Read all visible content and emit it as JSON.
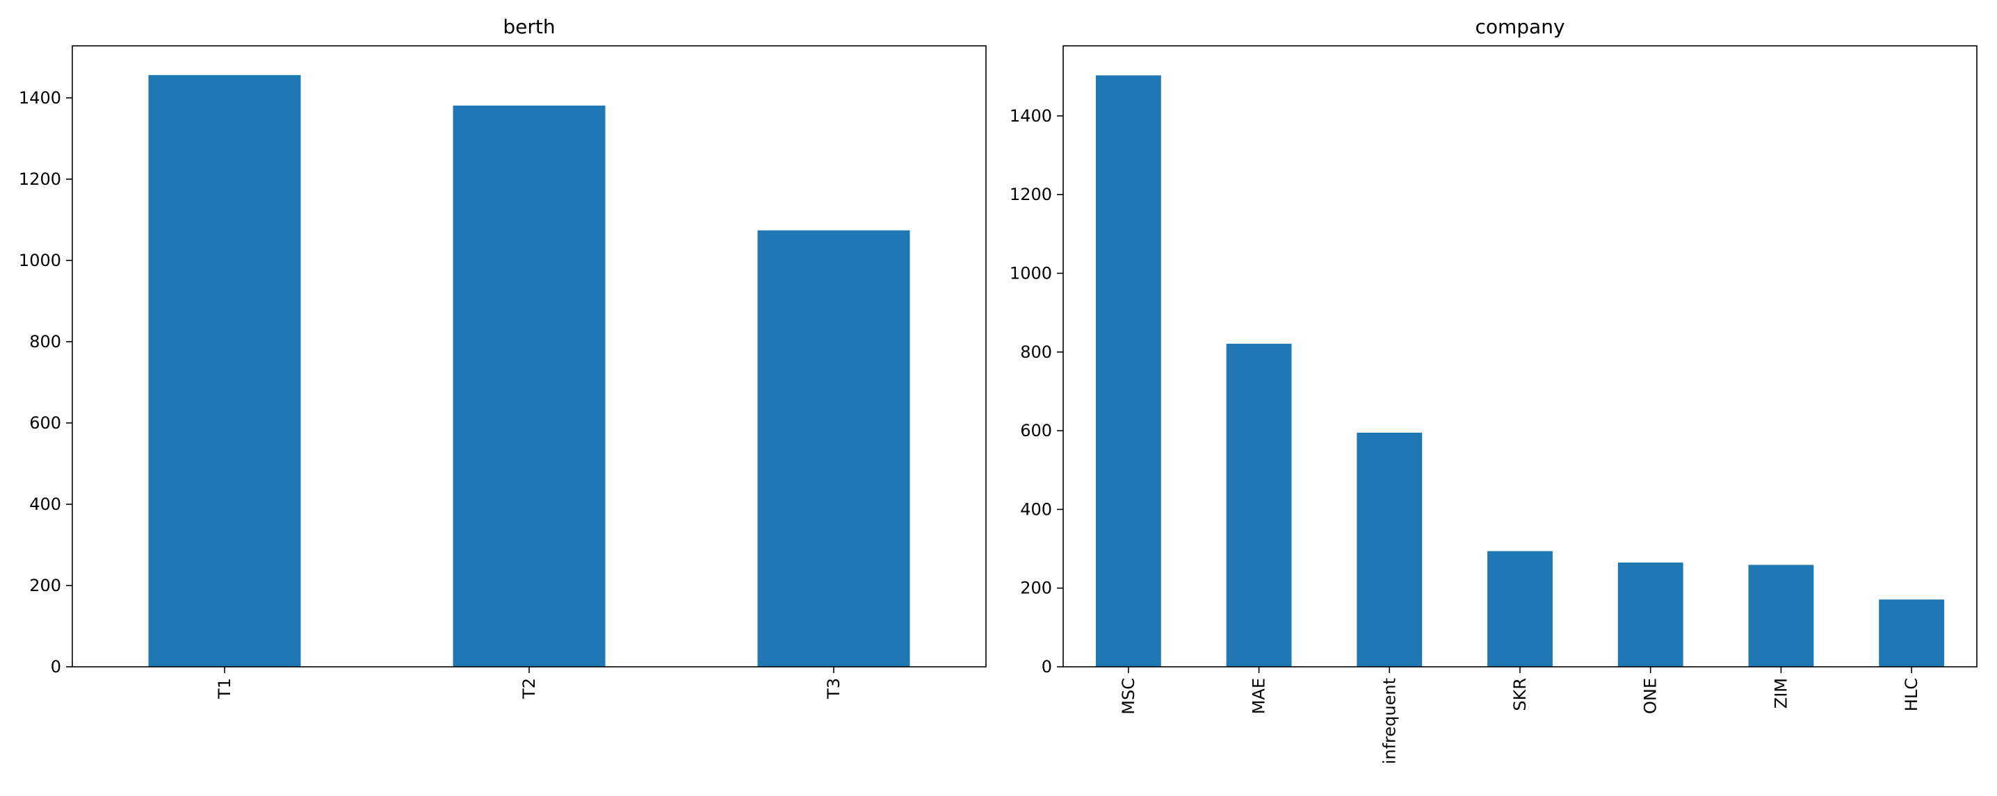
{
  "chart_data": [
    {
      "type": "bar",
      "title": "berth",
      "categories": [
        "T1",
        "T2",
        "T3"
      ],
      "values": [
        1456,
        1381,
        1074
      ],
      "color": "#1f77b4",
      "ylim": [
        0,
        1528
      ],
      "yticks": [
        0,
        200,
        400,
        600,
        800,
        1000,
        1200,
        1400
      ],
      "grid": false
    },
    {
      "type": "bar",
      "title": "company",
      "categories": [
        "MSC",
        "MAE",
        "infrequent",
        "SKR",
        "ONE",
        "ZIM",
        "HLC"
      ],
      "values": [
        1503,
        821,
        595,
        294,
        265,
        259,
        171
      ],
      "color": "#1f77b4",
      "ylim": [
        0,
        1578
      ],
      "yticks": [
        0,
        200,
        400,
        600,
        800,
        1000,
        1200,
        1400
      ],
      "grid": false
    }
  ]
}
